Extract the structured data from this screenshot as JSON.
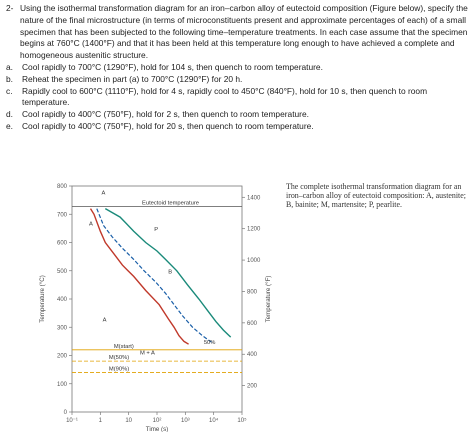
{
  "question": {
    "number": "2-",
    "intro": "Using the isothermal transformation diagram for an iron–carbon alloy of eutectoid composition (Figure below), specify the nature of the final microstructure (in terms of microconstituents present and approximate percentages of each) of a small specimen that has been subjected to the following time–temperature treatments. In each case assume that the specimen begins at 760°C (1400°F) and that it has been held at this temperature long enough to have achieved a complete and homogeneous austenitic structure.",
    "items": [
      {
        "letter": "a.",
        "text": "Cool rapidly to 700°C (1290°F), hold for 104 s, then quench to room temperature."
      },
      {
        "letter": "b.",
        "text": "Reheat the specimen in part (a) to 700°C (1290°F) for 20 h."
      },
      {
        "letter": "c.",
        "text": "Rapidly cool to 600°C (1110°F), hold for 4 s, rapidly cool to 450°C (840°F), hold for 10 s, then quench to room temperature."
      },
      {
        "letter": "d.",
        "text": "Cool rapidly to 400°C (750°F), hold for 2 s, then quench to room temperature."
      },
      {
        "letter": "e.",
        "text": "Cool rapidly to 400°C (750°F), hold for 20 s, then quench to room temperature."
      }
    ]
  },
  "caption": "The complete isothermal transformation diagram for an iron–carbon alloy of eutectoid composition: A, austenite; B, bainite; M, martensite; P, pearlite.",
  "chart_data": {
    "type": "line",
    "xlabel": "Time (s)",
    "ylabel": "Temperature (°C)",
    "ylabel_right": "Temperature (°F)",
    "x_scale": "log",
    "xlim": [
      0.1,
      100000
    ],
    "ylim": [
      0,
      800
    ],
    "x_tick_labels": [
      "10⁻¹",
      "1",
      "10",
      "10²",
      "10³",
      "10⁴",
      "10⁵"
    ],
    "y_ticks_left": [
      "0",
      "100",
      "200",
      "300",
      "400",
      "500",
      "600",
      "700",
      "800"
    ],
    "y_ticks_right": [
      "200",
      "400",
      "600",
      "800",
      "1000",
      "1200",
      "1400"
    ],
    "y_ticks_right_values": [
      200,
      400,
      600,
      800,
      1000,
      1200,
      1400
    ],
    "eutectoid_label": "Eutectoid temperature",
    "eutectoid_temp_c": 727,
    "mstart_label": "M(start)",
    "m50_label": "M(50%)",
    "m90_label": "M(90%)",
    "ma_label": "M + A",
    "pct50_label": "50%",
    "region_labels": {
      "A": "A",
      "P": "P",
      "B": "B",
      "AP": "A",
      "AB": "A"
    },
    "martensite_temps_c": {
      "start": 220,
      "m50": 180,
      "m90": 140
    },
    "colors": {
      "start": "#c0392b",
      "fifty": "#1a5fa8",
      "finish": "#1a8a7a",
      "mlines": "#e0a000"
    },
    "curves": {
      "start": [
        [
          0.45,
          720
        ],
        [
          0.6,
          700
        ],
        [
          1,
          640
        ],
        [
          1.5,
          600
        ],
        [
          3,
          560
        ],
        [
          6,
          520
        ],
        [
          15,
          480
        ],
        [
          40,
          430
        ],
        [
          120,
          380
        ],
        [
          250,
          330
        ],
        [
          400,
          300
        ],
        [
          600,
          270
        ],
        [
          900,
          250
        ],
        [
          1300,
          240
        ]
      ],
      "fifty": [
        [
          0.75,
          720
        ],
        [
          1.3,
          660
        ],
        [
          2.6,
          620
        ],
        [
          6,
          580
        ],
        [
          15,
          540
        ],
        [
          35,
          500
        ],
        [
          90,
          460
        ],
        [
          200,
          420
        ],
        [
          400,
          380
        ],
        [
          800,
          340
        ],
        [
          1800,
          300
        ],
        [
          4000,
          270
        ],
        [
          9000,
          245
        ]
      ],
      "finish": [
        [
          1.5,
          720
        ],
        [
          5,
          690
        ],
        [
          15,
          640
        ],
        [
          40,
          600
        ],
        [
          100,
          570
        ],
        [
          200,
          540
        ],
        [
          500,
          500
        ],
        [
          1200,
          450
        ],
        [
          3000,
          400
        ],
        [
          6000,
          360
        ],
        [
          12000,
          320
        ],
        [
          22000,
          290
        ],
        [
          40000,
          265
        ]
      ]
    }
  }
}
